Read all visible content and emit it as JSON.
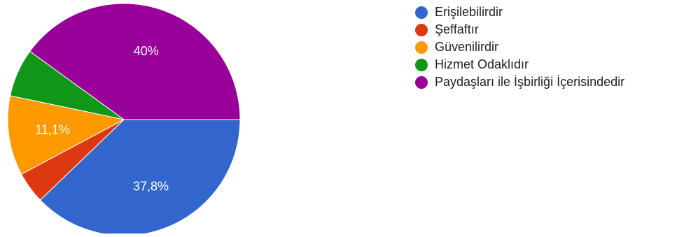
{
  "chart_data": {
    "type": "pie",
    "title": "",
    "start_angle_deg": 90,
    "direction": "clockwise",
    "legend_position": "right",
    "slices": [
      {
        "label": "Erişilebilirdir",
        "value": 37.8,
        "display": "37,8%",
        "color": "#3366cc"
      },
      {
        "label": "Şeffaftır",
        "value": 4.4,
        "display": "",
        "color": "#dc3912"
      },
      {
        "label": "Güvenilirdir",
        "value": 11.1,
        "display": "11,1%",
        "color": "#ff9900"
      },
      {
        "label": "Hizmet Odaklıdır",
        "value": 6.7,
        "display": "",
        "color": "#109618"
      },
      {
        "label": "Paydaşları ile İşbirliği İçerisindedir",
        "value": 40.0,
        "display": "40%",
        "color": "#990099"
      }
    ]
  }
}
